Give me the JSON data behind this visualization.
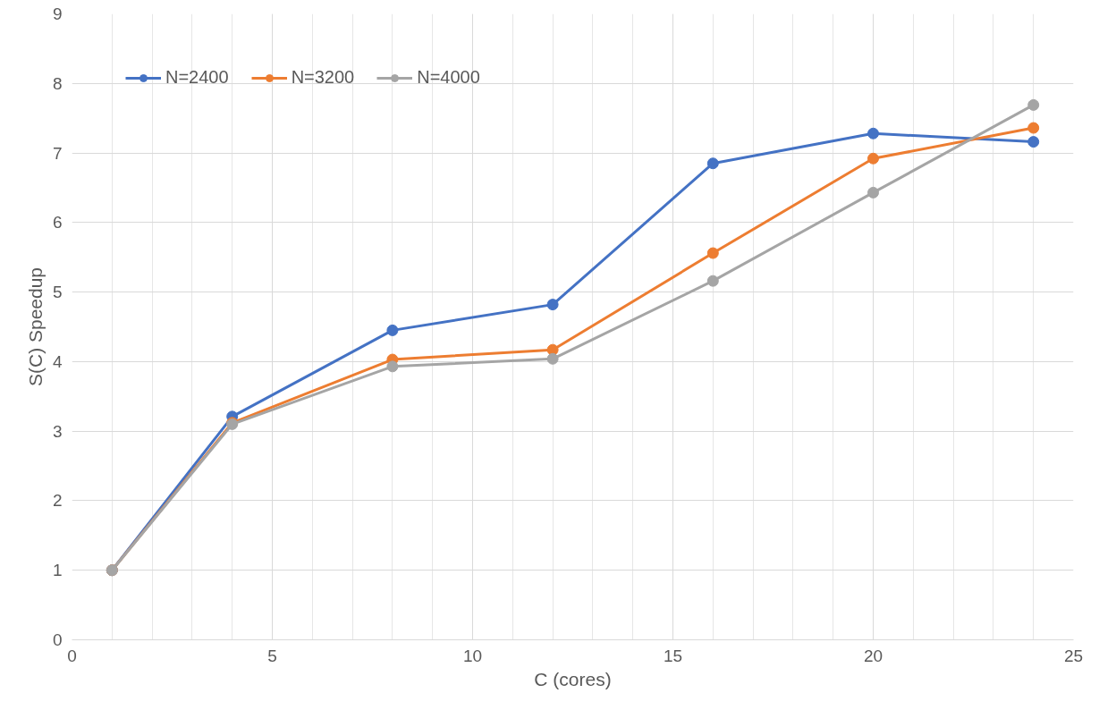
{
  "chart_data": {
    "type": "line",
    "xlabel": "C (cores)",
    "ylabel": "S(C) Speedup",
    "x": [
      1,
      4,
      8,
      12,
      16,
      20,
      24
    ],
    "series": [
      {
        "name": "N=2400",
        "color": "#4472c4",
        "values": [
          1,
          3.21,
          4.45,
          4.82,
          6.85,
          7.28,
          7.16
        ]
      },
      {
        "name": "N=3200",
        "color": "#ed7d31",
        "values": [
          1,
          3.12,
          4.03,
          4.17,
          5.56,
          6.92,
          7.36
        ]
      },
      {
        "name": "N=4000",
        "color": "#a5a5a5",
        "values": [
          1,
          3.1,
          3.93,
          4.04,
          5.16,
          6.43,
          7.69
        ]
      }
    ],
    "xlim": [
      0,
      25
    ],
    "xticks": [
      0,
      5,
      10,
      15,
      20,
      25
    ],
    "ylim": [
      0,
      9
    ],
    "yticks": [
      0,
      1,
      2,
      3,
      4,
      5,
      6,
      7,
      8,
      9
    ],
    "grid": true,
    "legend": "top left",
    "marker": "circle",
    "line_style": "solid"
  }
}
